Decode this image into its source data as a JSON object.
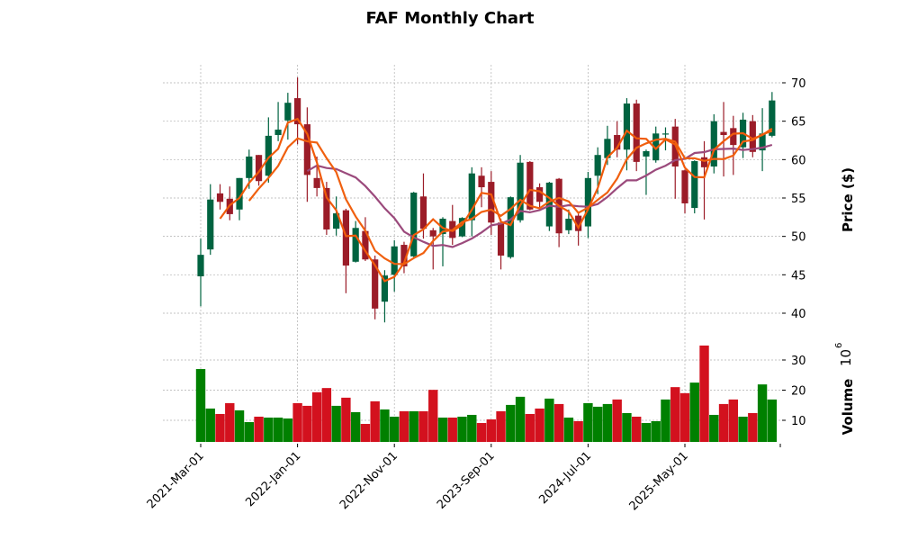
{
  "chart_data": {
    "type": "candlestick",
    "title": "FAF Monthly Chart",
    "ylabel": "Price ($)",
    "volume_label": "Volume",
    "volume_exponent": "10",
    "volume_exponent_power": "6",
    "ylim": [
      37.3,
      72.3
    ],
    "volume_ylim": [
      2.8,
      38
    ],
    "yticks": [
      40,
      45,
      50,
      55,
      60,
      65,
      70
    ],
    "volume_yticks": [
      10,
      20,
      30
    ],
    "xtick_labels": [
      {
        "index": 0,
        "label": "2021-Mar-01"
      },
      {
        "index": 10,
        "label": "2022-Jan-01"
      },
      {
        "index": 20,
        "label": "2022-Nov-01"
      },
      {
        "index": 30,
        "label": "2023-Sep-01"
      },
      {
        "index": 40,
        "label": "2024-Jul-01"
      },
      {
        "index": 50,
        "label": "2025-May-01"
      }
    ],
    "moving_averages": [
      {
        "period": 3,
        "color": "#f05a0a"
      },
      {
        "period": 6,
        "color": "#f0600f"
      },
      {
        "period": 12,
        "color": "#9b4a7c"
      }
    ],
    "colors": {
      "up": "#006340",
      "down": "#9b1c28",
      "vol_up": "#008000",
      "vol_down": "#d3111e",
      "grid": "#b0b0b0"
    },
    "ohlc": [
      [
        44.8,
        49.7,
        40.9,
        47.6
      ],
      [
        48.3,
        56.8,
        47.6,
        54.8
      ],
      [
        55.6,
        56.8,
        53.5,
        54.5
      ],
      [
        54.9,
        56.5,
        52.1,
        52.9
      ],
      [
        53.5,
        57.6,
        52.1,
        57.6
      ],
      [
        57.6,
        61.3,
        56.2,
        60.4
      ],
      [
        60.6,
        60.6,
        56.6,
        57.2
      ],
      [
        57.9,
        65.5,
        57.0,
        63.1
      ],
      [
        63.2,
        67.5,
        62.4,
        63.9
      ],
      [
        65.1,
        68.7,
        62.6,
        67.4
      ],
      [
        68.0,
        70.7,
        62.0,
        64.6
      ],
      [
        64.6,
        66.8,
        54.5,
        58.0
      ],
      [
        57.6,
        60.4,
        55.2,
        56.3
      ],
      [
        56.3,
        57.1,
        50.2,
        50.9
      ],
      [
        51.0,
        55.2,
        50.1,
        53.0
      ],
      [
        53.4,
        53.6,
        42.6,
        46.2
      ],
      [
        46.7,
        52.0,
        46.6,
        51.1
      ],
      [
        50.7,
        52.5,
        46.8,
        47.0
      ],
      [
        47.0,
        47.5,
        39.2,
        40.6
      ],
      [
        41.5,
        45.6,
        38.8,
        44.9
      ],
      [
        45.0,
        49.5,
        42.8,
        48.7
      ],
      [
        48.9,
        49.3,
        45.2,
        46.1
      ],
      [
        47.4,
        55.8,
        47.3,
        55.7
      ],
      [
        55.2,
        58.2,
        49.7,
        51.0
      ],
      [
        50.8,
        51.1,
        45.7,
        50.0
      ],
      [
        50.3,
        52.5,
        46.1,
        52.3
      ],
      [
        52.0,
        54.1,
        48.9,
        49.8
      ],
      [
        50.0,
        52.5,
        49.9,
        52.4
      ],
      [
        52.1,
        59.0,
        50.0,
        58.2
      ],
      [
        57.9,
        59.0,
        53.8,
        56.4
      ],
      [
        57.1,
        58.5,
        50.2,
        51.8
      ],
      [
        51.8,
        52.3,
        45.7,
        47.5
      ],
      [
        47.3,
        55.2,
        47.1,
        55.1
      ],
      [
        52.1,
        60.6,
        51.8,
        59.6
      ],
      [
        59.7,
        59.8,
        53.4,
        53.5
      ],
      [
        56.4,
        56.9,
        53.3,
        54.5
      ],
      [
        51.3,
        57.1,
        50.7,
        57.0
      ],
      [
        57.5,
        57.6,
        48.6,
        50.4
      ],
      [
        50.8,
        53.5,
        50.3,
        52.3
      ],
      [
        52.7,
        53.1,
        48.8,
        50.7
      ],
      [
        51.3,
        58.4,
        49.8,
        57.6
      ],
      [
        57.9,
        61.6,
        55.5,
        60.6
      ],
      [
        60.2,
        64.4,
        59.3,
        62.7
      ],
      [
        63.2,
        65.0,
        60.3,
        61.3
      ],
      [
        61.3,
        68.0,
        58.6,
        67.3
      ],
      [
        67.3,
        67.8,
        58.5,
        59.7
      ],
      [
        60.4,
        61.3,
        55.4,
        61.1
      ],
      [
        59.9,
        64.3,
        59.6,
        63.4
      ],
      [
        63.3,
        64.2,
        61.2,
        63.4
      ],
      [
        64.3,
        65.3,
        54.9,
        59.1
      ],
      [
        58.6,
        58.7,
        53.0,
        54.3
      ],
      [
        53.7,
        59.9,
        53.0,
        59.8
      ],
      [
        60.3,
        62.4,
        52.2,
        59.0
      ],
      [
        59.1,
        65.9,
        58.2,
        65.0
      ],
      [
        63.6,
        67.5,
        57.8,
        63.2
      ],
      [
        64.1,
        65.7,
        58.0,
        61.9
      ],
      [
        61.6,
        66.1,
        60.2,
        65.2
      ],
      [
        65.0,
        65.8,
        60.3,
        61.0
      ],
      [
        61.2,
        66.7,
        58.5,
        63.4
      ],
      [
        63.1,
        68.8,
        62.9,
        67.7
      ]
    ],
    "volume": [
      27.0,
      13.9,
      12.1,
      15.7,
      13.3,
      9.4,
      11.2,
      10.9,
      10.9,
      10.6,
      15.7,
      14.8,
      19.3,
      20.7,
      14.8,
      17.5,
      12.7,
      8.8,
      16.3,
      13.6,
      11.2,
      13.0,
      13.0,
      13.0,
      20.1,
      10.9,
      10.9,
      11.2,
      11.8,
      9.1,
      10.3,
      13.0,
      15.1,
      17.8,
      12.1,
      13.9,
      17.2,
      15.4,
      10.9,
      9.7,
      15.7,
      14.5,
      15.4,
      16.9,
      12.4,
      11.2,
      9.1,
      9.7,
      16.9,
      21.0,
      19.0,
      22.5,
      34.8,
      11.8,
      15.4,
      16.9,
      11.2,
      12.4,
      21.9,
      16.9
    ]
  }
}
